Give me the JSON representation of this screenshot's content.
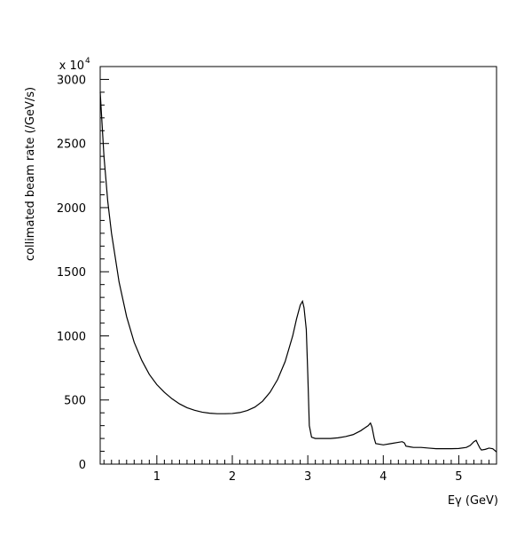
{
  "chart_data": {
    "type": "line",
    "title": "",
    "xlabel": "Eγ (GeV)",
    "ylabel": "collimated beam rate (/GeV/s)",
    "y_scale_label": {
      "base": "x 10",
      "exponent": "4"
    },
    "xlim": [
      0.25,
      5.5
    ],
    "ylim": [
      0,
      3100
    ],
    "x_ticks": [
      1,
      2,
      3,
      4,
      5
    ],
    "x_tick_labels": [
      "1",
      "2",
      "3",
      "4",
      "5"
    ],
    "y_ticks": [
      0,
      500,
      1000,
      1500,
      2000,
      2500,
      3000
    ],
    "y_tick_labels": [
      "0",
      "500",
      "1000",
      "1500",
      "2000",
      "2500",
      "3000"
    ],
    "grid": false,
    "legend": "none",
    "line_color": "#000000",
    "series": [
      {
        "x": [
          0.25,
          0.3,
          0.35,
          0.4,
          0.5,
          0.6,
          0.7,
          0.8,
          0.9,
          1.0,
          1.1,
          1.2,
          1.3,
          1.4,
          1.5,
          1.6,
          1.7,
          1.8,
          1.9,
          2.0,
          2.1,
          2.2,
          2.3,
          2.4,
          2.5,
          2.6,
          2.7,
          2.8,
          2.85,
          2.9,
          2.93,
          2.95,
          2.98,
          3.0,
          3.02,
          3.05,
          3.1,
          3.2,
          3.3,
          3.4,
          3.5,
          3.6,
          3.7,
          3.75,
          3.8,
          3.83,
          3.85,
          3.88,
          3.9,
          4.0,
          4.1,
          4.2,
          4.25,
          4.28,
          4.3,
          4.35,
          4.4,
          4.5,
          4.6,
          4.7,
          4.8,
          4.9,
          5.0,
          5.1,
          5.15,
          5.2,
          5.23,
          5.25,
          5.28,
          5.3,
          5.35,
          5.4,
          5.45,
          5.5
        ],
        "y": [
          2900,
          2400,
          2050,
          1800,
          1420,
          1150,
          950,
          810,
          700,
          620,
          560,
          510,
          470,
          440,
          420,
          405,
          397,
          393,
          393,
          395,
          402,
          418,
          445,
          490,
          560,
          660,
          800,
          1000,
          1130,
          1240,
          1270,
          1220,
          1050,
          700,
          300,
          210,
          200,
          200,
          200,
          205,
          215,
          230,
          260,
          280,
          300,
          320,
          290,
          200,
          160,
          150,
          160,
          170,
          175,
          165,
          140,
          135,
          130,
          130,
          125,
          120,
          120,
          120,
          122,
          130,
          145,
          175,
          185,
          160,
          125,
          110,
          115,
          125,
          120,
          95
        ]
      }
    ]
  }
}
